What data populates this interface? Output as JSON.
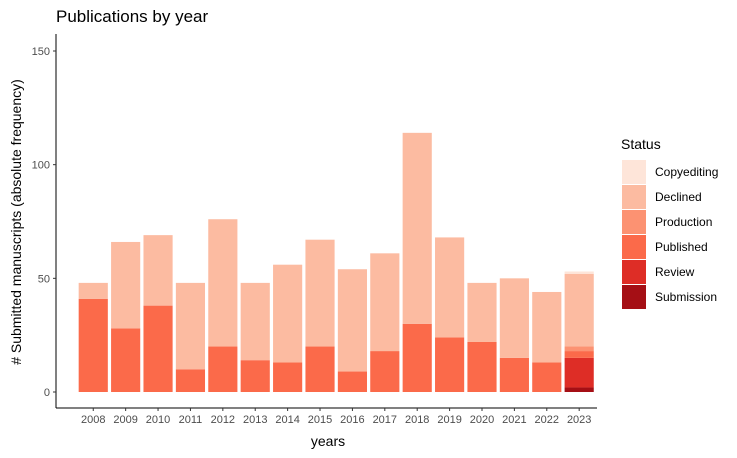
{
  "chart_data": {
    "type": "bar",
    "stacked": true,
    "title": "Publications by year",
    "xlabel": "years",
    "ylabel": "# Submitted manuscripts (absolute frequency)",
    "ylim": [
      0,
      155
    ],
    "yticks": [
      0,
      50,
      100,
      150
    ],
    "grid": false,
    "legend_position": "right",
    "legend_title": "Status",
    "categories": [
      "2008",
      "2009",
      "2010",
      "2011",
      "2012",
      "2013",
      "2014",
      "2015",
      "2016",
      "2017",
      "2018",
      "2019",
      "2020",
      "2021",
      "2022",
      "2023"
    ],
    "series": [
      {
        "name": "Submission",
        "color": "#a50f15",
        "values": [
          0,
          0,
          0,
          0,
          0,
          0,
          0,
          0,
          0,
          0,
          0,
          0,
          0,
          0,
          0,
          2
        ]
      },
      {
        "name": "Review",
        "color": "#de2d26",
        "values": [
          0,
          0,
          0,
          0,
          0,
          0,
          0,
          0,
          0,
          0,
          0,
          0,
          0,
          0,
          0,
          13
        ]
      },
      {
        "name": "Published",
        "color": "#fb6a4a",
        "values": [
          41,
          28,
          38,
          10,
          20,
          14,
          13,
          20,
          9,
          18,
          30,
          24,
          22,
          15,
          13,
          3
        ]
      },
      {
        "name": "Production",
        "color": "#fc9272",
        "values": [
          0,
          0,
          0,
          0,
          0,
          0,
          0,
          0,
          0,
          0,
          0,
          0,
          0,
          0,
          0,
          2
        ]
      },
      {
        "name": "Declined",
        "color": "#fcbba1",
        "values": [
          7,
          38,
          31,
          38,
          56,
          34,
          43,
          47,
          45,
          43,
          84,
          44,
          26,
          35,
          31,
          32
        ]
      },
      {
        "name": "Copyediting",
        "color": "#fee5d9",
        "values": [
          0,
          0,
          0,
          0,
          0,
          0,
          0,
          0,
          0,
          0,
          0,
          0,
          0,
          0,
          0,
          1
        ]
      }
    ],
    "legend_order": [
      "Copyediting",
      "Declined",
      "Production",
      "Published",
      "Review",
      "Submission"
    ]
  }
}
